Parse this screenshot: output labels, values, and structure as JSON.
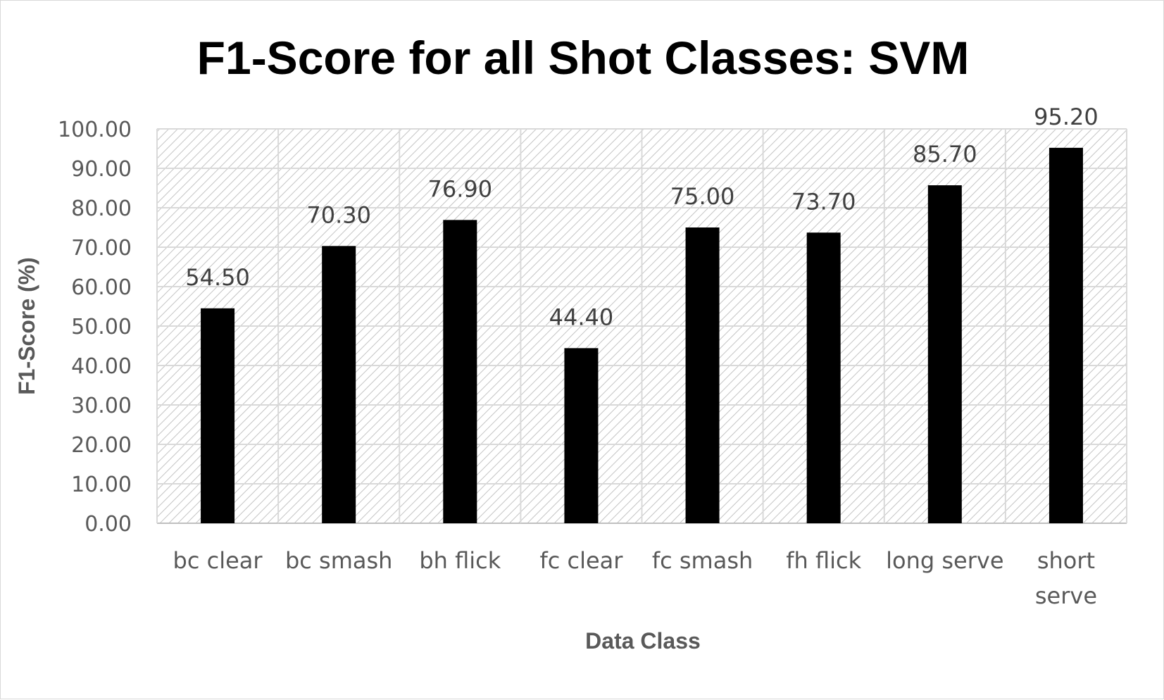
{
  "chart_data": {
    "type": "bar",
    "title": "F1-Score for all Shot Classes: SVM",
    "xlabel": "Data Class",
    "ylabel": "F1-Score (%)",
    "categories": [
      "bc clear",
      "bc smash",
      "bh flick",
      "fc clear",
      "fc smash",
      "fh flick",
      "long serve",
      "short serve"
    ],
    "values": [
      54.5,
      70.3,
      76.9,
      44.4,
      75.0,
      73.7,
      85.7,
      95.2
    ],
    "data_labels": [
      "54.50",
      "70.30",
      "76.90",
      "44.40",
      "75.00",
      "73.70",
      "85.70",
      "95.20"
    ],
    "ylim": [
      0,
      100
    ],
    "y_ticks": [
      "0.00",
      "10.00",
      "20.00",
      "30.00",
      "40.00",
      "50.00",
      "60.00",
      "70.00",
      "80.00",
      "90.00",
      "100.00"
    ],
    "grid": true,
    "legend": "none",
    "colors": {
      "bar": "#000000",
      "grid": "#d9d9d9",
      "hatch": "#bfbfbf"
    }
  }
}
